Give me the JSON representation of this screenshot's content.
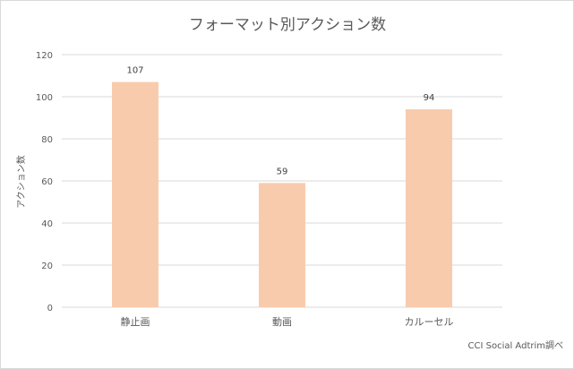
{
  "chart_data": {
    "type": "bar",
    "title": "フォーマット別アクション数",
    "xlabel": "",
    "ylabel": "アクション数",
    "categories": [
      "静止画",
      "動画",
      "カルーセル"
    ],
    "values": [
      107,
      59,
      94
    ],
    "data_labels": [
      "107",
      "59",
      "94"
    ],
    "ylim": [
      0,
      120
    ],
    "yticks": [
      0,
      20,
      40,
      60,
      80,
      100,
      120
    ],
    "grid": true,
    "legend": "none",
    "bar_color": "#f8cbad"
  },
  "source_note": "CCI Social Adtrim調べ",
  "colors": {
    "bar": "#f8cbad",
    "grid": "#d9d9d9",
    "text": "#595959"
  }
}
